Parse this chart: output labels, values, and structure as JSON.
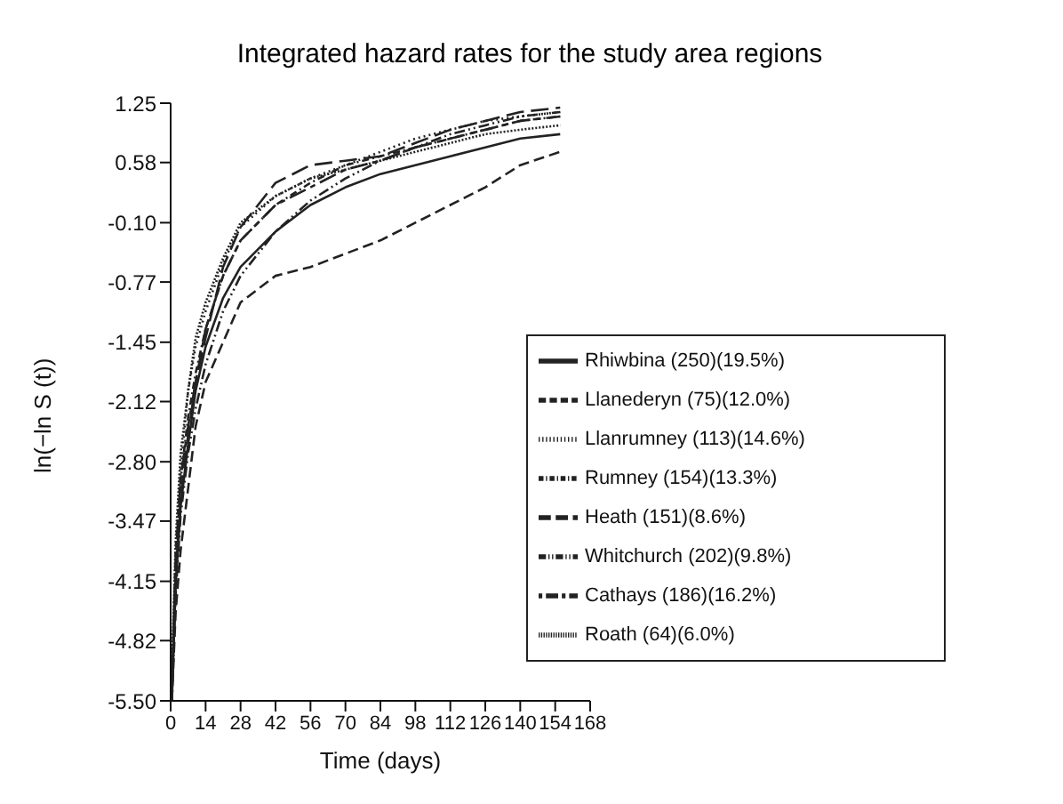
{
  "chart_data": {
    "type": "line",
    "title": "Integrated hazard rates for the study area regions",
    "xlabel": "Time (days)",
    "ylabel": "ln(−ln S (t))",
    "x": [
      0.5,
      2,
      4,
      7,
      10,
      14,
      21,
      28,
      42,
      56,
      70,
      84,
      98,
      112,
      126,
      140,
      156
    ],
    "xlim": [
      0,
      168
    ],
    "xticks": [
      0,
      14,
      28,
      42,
      56,
      70,
      84,
      98,
      112,
      126,
      140,
      154,
      168
    ],
    "ylim": [
      -5.5,
      1.25
    ],
    "yticks": [
      {
        "value": -5.5,
        "label": "-5.50"
      },
      {
        "value": -4.82,
        "label": "-4.82"
      },
      {
        "value": -4.15,
        "label": "-4.15"
      },
      {
        "value": -3.47,
        "label": "-3.47"
      },
      {
        "value": -2.8,
        "label": "-2.80"
      },
      {
        "value": -2.12,
        "label": "-2.12"
      },
      {
        "value": -1.45,
        "label": "-1.45"
      },
      {
        "value": -0.77,
        "label": "-0.77"
      },
      {
        "value": -0.1,
        "label": "-0.10"
      },
      {
        "value": 0.58,
        "label": "0.58"
      },
      {
        "value": 1.25,
        "label": "1.25"
      }
    ],
    "grid": false,
    "legend": "bottom right",
    "marker": "none",
    "series": [
      {
        "name": "Rhiwbina (250)(19.5%)",
        "color": "#222222",
        "line_style": "solid",
        "values": [
          -5.5,
          -4.2,
          -3.3,
          -2.6,
          -2.0,
          -1.5,
          -0.95,
          -0.6,
          -0.2,
          0.1,
          0.3,
          0.45,
          0.55,
          0.65,
          0.75,
          0.85,
          0.9
        ]
      },
      {
        "name": "Llanederyn (75)(12.0%)",
        "color": "#222222",
        "line_style": "dashed",
        "values": [
          -5.5,
          -4.5,
          -3.8,
          -3.1,
          -2.4,
          -1.9,
          -1.45,
          -1.0,
          -0.7,
          -0.6,
          -0.45,
          -0.3,
          -0.1,
          0.1,
          0.3,
          0.55,
          0.7
        ]
      },
      {
        "name": "Llanrumney (113)(14.6%)",
        "color": "#222222",
        "line_style": "dotted",
        "values": [
          -5.3,
          -3.8,
          -2.9,
          -2.0,
          -1.5,
          -1.1,
          -0.55,
          -0.15,
          0.2,
          0.4,
          0.55,
          0.7,
          0.85,
          0.95,
          1.05,
          1.1,
          1.15
        ]
      },
      {
        "name": "Rumney (154)(13.3%)",
        "color": "#222222",
        "line_style": "dashed",
        "values": [
          -5.4,
          -4.0,
          -3.0,
          -2.3,
          -1.8,
          -1.3,
          -0.7,
          -0.3,
          0.1,
          0.35,
          0.55,
          0.65,
          0.75,
          0.85,
          0.95,
          1.05,
          1.1
        ]
      },
      {
        "name": "Heath (151)(8.6%)",
        "color": "#222222",
        "line_style": "dashed",
        "values": [
          -5.4,
          -4.1,
          -3.2,
          -2.5,
          -1.9,
          -1.4,
          -0.6,
          -0.15,
          0.35,
          0.55,
          0.6,
          0.65,
          0.8,
          0.95,
          1.05,
          1.15,
          1.2
        ]
      },
      {
        "name": "Whitchurch (202)(9.8%)",
        "color": "#222222",
        "line_style": "dashed",
        "values": [
          -5.5,
          -4.3,
          -3.4,
          -2.7,
          -2.2,
          -1.7,
          -1.1,
          -0.7,
          -0.2,
          0.15,
          0.4,
          0.6,
          0.75,
          0.9,
          1.0,
          1.1,
          1.15
        ]
      },
      {
        "name": "Cathays (186)(16.2%)",
        "color": "#222222",
        "line_style": "dashed",
        "values": [
          -5.3,
          -3.9,
          -3.0,
          -2.4,
          -1.9,
          -1.3,
          -0.7,
          -0.3,
          0.1,
          0.3,
          0.5,
          0.6,
          0.75,
          0.85,
          0.95,
          1.05,
          1.1
        ]
      },
      {
        "name": "Roath (64)(6.0%)",
        "color": "#222222",
        "line_style": "dotted",
        "values": [
          -5.2,
          -3.7,
          -2.7,
          -2.0,
          -1.4,
          -1.0,
          -0.5,
          -0.1,
          0.2,
          0.4,
          0.5,
          0.6,
          0.7,
          0.8,
          0.9,
          0.95,
          1.0
        ]
      }
    ]
  }
}
